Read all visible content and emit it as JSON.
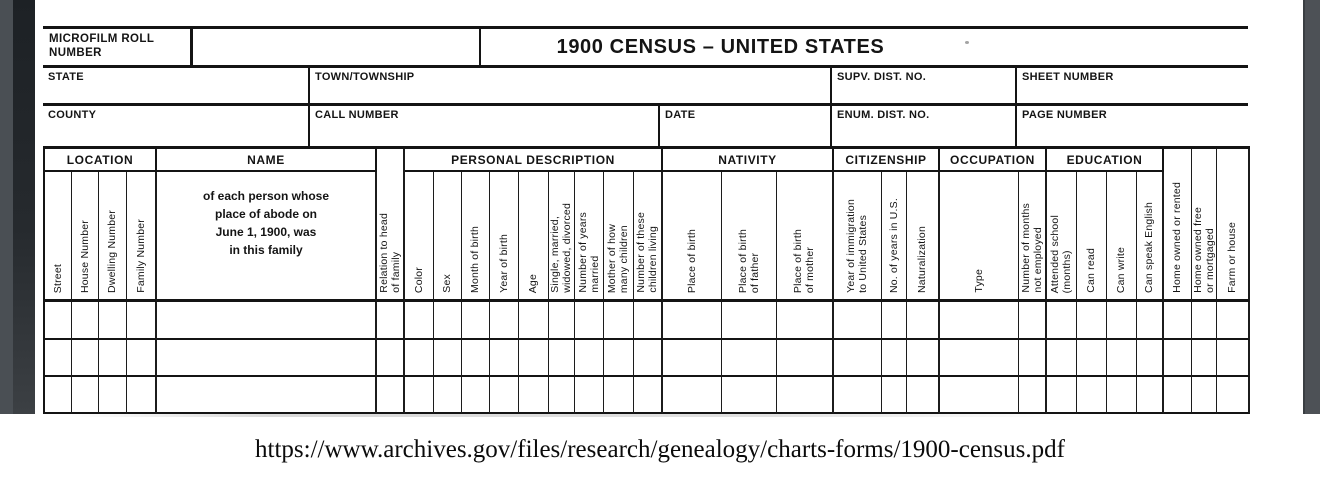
{
  "colors": {
    "gutter": "#4c5055",
    "page_edge_bar": "#24282c",
    "form_line": "#141414",
    "page": "#ffffff"
  },
  "header": {
    "microfilm_lines": [
      "MICROFILM ROLL",
      "NUMBER"
    ],
    "title": "1900 CENSUS – UNITED STATES",
    "row2": [
      "STATE",
      "TOWN/TOWNSHIP",
      "SUPV. DIST. NO.",
      "SHEET NUMBER"
    ],
    "row3": [
      "COUNTY",
      "CALL NUMBER",
      "DATE",
      "ENUM. DIST. NO.",
      "PAGE NUMBER"
    ]
  },
  "table": {
    "groups": [
      {
        "label": "LOCATION",
        "span": 4
      },
      {
        "label": "NAME",
        "span": 1
      },
      {
        "label": "",
        "span": 1,
        "tall": true
      },
      {
        "label": "PERSONAL DESCRIPTION",
        "span": 9
      },
      {
        "label": "NATIVITY",
        "span": 3
      },
      {
        "label": "CITIZENSHIP",
        "span": 3
      },
      {
        "label": "OCCUPATION",
        "span": 2
      },
      {
        "label": "EDUCATION",
        "span": 4
      },
      {
        "label": "",
        "span": 3,
        "tall": true
      }
    ],
    "columns": [
      "Street",
      "House Number",
      "Dwelling Number",
      "Family Number",
      "",
      "Relation to head\nof family",
      "Color",
      "Sex",
      "Month of birth",
      "Year of birth",
      "Age",
      "Single, married,\nwidowed, divorced",
      "Number of years\nmarried",
      "Mother of how\nmany children",
      "Number of these\nchildren living",
      "Place of birth",
      "Place of birth\nof father",
      "Place of birth\nof mother",
      "Year of immigration\nto United States",
      "No. of years in U.S.",
      "Naturalization",
      "Type",
      "Number of months\nnot employed",
      "Attended school\n(months)",
      "Can read",
      "Can write",
      "Can speak English",
      "Home owned or rented",
      "Home owned free\nor mortgaged",
      "Farm or house"
    ],
    "name_note": "of each person whose\nplace of abode on\nJune 1, 1900, was\nin this family",
    "blank_row_count": 3
  },
  "footer": {
    "url": "https://www.archives.gov/files/research/genealogy/charts-forms/1900-census.pdf"
  }
}
